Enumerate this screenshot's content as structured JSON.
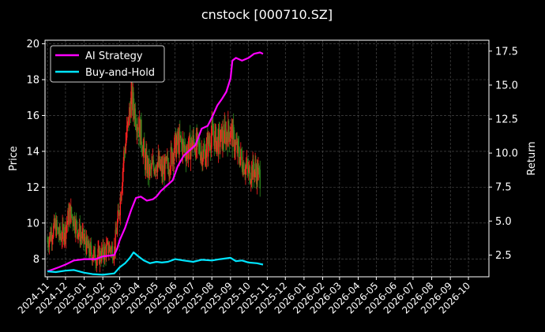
{
  "chart_data": {
    "type": "line",
    "title": "cnstock [000710.SZ]",
    "ylabel_left": "Price",
    "ylabel_right": "Return",
    "ylim_left": [
      7.0,
      20.2
    ],
    "ylim_right": [
      0.9,
      18.3
    ],
    "x_range": [
      "2024-10-28",
      "2026-11-04"
    ],
    "grid": true,
    "legend_position": "top-left",
    "x_tick_labels": [
      "2024-11",
      "2024-12",
      "2025-01",
      "2025-02",
      "2025-03",
      "2025-04",
      "2025-05",
      "2025-06",
      "2025-07",
      "2025-08",
      "2025-09",
      "2025-10",
      "2025-11",
      "2025-12",
      "2026-01",
      "2026-02",
      "2026-03",
      "2026-04",
      "2026-05",
      "2026-06",
      "2026-07",
      "2026-08",
      "2026-09",
      "2026-10"
    ],
    "y_left_ticks": [
      8,
      10,
      12,
      14,
      16,
      18,
      20
    ],
    "y_right_ticks": [
      "2.5",
      "5.0",
      "7.5",
      "10.0",
      "12.5",
      "15.0",
      "17.5"
    ],
    "price_candles": {
      "colors": {
        "up": "#ff2020",
        "down": "#2e8b1e"
      },
      "close_points": [
        [
          "2024-11-01",
          9.0
        ],
        [
          "2024-11-08",
          9.5
        ],
        [
          "2024-11-15",
          9.8
        ],
        [
          "2024-11-22",
          9.2
        ],
        [
          "2024-12-01",
          9.7
        ],
        [
          "2024-12-08",
          10.6
        ],
        [
          "2024-12-15",
          10.2
        ],
        [
          "2024-12-22",
          9.6
        ],
        [
          "2025-01-01",
          9.0
        ],
        [
          "2025-01-08",
          8.5
        ],
        [
          "2025-01-15",
          8.3
        ],
        [
          "2025-01-22",
          8.1
        ],
        [
          "2025-02-01",
          8.3
        ],
        [
          "2025-02-10",
          8.6
        ],
        [
          "2025-02-20",
          8.5
        ],
        [
          "2025-03-01",
          11.0
        ],
        [
          "2025-03-08",
          13.8
        ],
        [
          "2025-03-15",
          15.5
        ],
        [
          "2025-03-20",
          17.0
        ],
        [
          "2025-03-28",
          16.0
        ],
        [
          "2025-04-05",
          15.0
        ],
        [
          "2025-04-12",
          13.5
        ],
        [
          "2025-04-20",
          12.8
        ],
        [
          "2025-05-01",
          13.5
        ],
        [
          "2025-05-10",
          12.8
        ],
        [
          "2025-05-20",
          13.2
        ],
        [
          "2025-06-01",
          14.3
        ],
        [
          "2025-06-10",
          14.5
        ],
        [
          "2025-06-20",
          14.0
        ],
        [
          "2025-07-01",
          14.5
        ],
        [
          "2025-07-10",
          14.2
        ],
        [
          "2025-07-20",
          13.8
        ],
        [
          "2025-08-01",
          15.0
        ],
        [
          "2025-08-10",
          14.5
        ],
        [
          "2025-08-20",
          14.8
        ],
        [
          "2025-09-01",
          15.2
        ],
        [
          "2025-09-10",
          14.2
        ],
        [
          "2025-09-20",
          13.5
        ],
        [
          "2025-10-01",
          12.8
        ],
        [
          "2025-10-10",
          13.0
        ],
        [
          "2025-10-20",
          12.6
        ]
      ]
    },
    "series": [
      {
        "name": "AI Strategy",
        "color": "#ff00ff",
        "axis": "right",
        "points": [
          [
            "2024-11-01",
            1.3
          ],
          [
            "2024-11-20",
            1.6
          ],
          [
            "2024-12-01",
            1.8
          ],
          [
            "2024-12-15",
            2.1
          ],
          [
            "2025-01-01",
            2.2
          ],
          [
            "2025-01-20",
            2.2
          ],
          [
            "2025-02-01",
            2.4
          ],
          [
            "2025-02-20",
            2.5
          ],
          [
            "2025-02-25",
            3.0
          ],
          [
            "2025-03-01",
            3.6
          ],
          [
            "2025-03-10",
            4.5
          ],
          [
            "2025-03-20",
            5.8
          ],
          [
            "2025-03-28",
            6.7
          ],
          [
            "2025-04-05",
            6.8
          ],
          [
            "2025-04-15",
            6.5
          ],
          [
            "2025-04-25",
            6.6
          ],
          [
            "2025-05-01",
            6.8
          ],
          [
            "2025-05-08",
            7.2
          ],
          [
            "2025-05-18",
            7.6
          ],
          [
            "2025-05-28",
            8.0
          ],
          [
            "2025-06-05",
            9.0
          ],
          [
            "2025-06-15",
            9.8
          ],
          [
            "2025-06-25",
            10.2
          ],
          [
            "2025-07-05",
            10.6
          ],
          [
            "2025-07-15",
            11.8
          ],
          [
            "2025-07-25",
            12.0
          ],
          [
            "2025-08-01",
            12.6
          ],
          [
            "2025-08-10",
            13.5
          ],
          [
            "2025-08-18",
            14.0
          ],
          [
            "2025-08-25",
            14.5
          ],
          [
            "2025-09-01",
            15.5
          ],
          [
            "2025-09-04",
            16.8
          ],
          [
            "2025-09-10",
            17.0
          ],
          [
            "2025-09-20",
            16.8
          ],
          [
            "2025-10-01",
            17.0
          ],
          [
            "2025-10-10",
            17.3
          ],
          [
            "2025-10-20",
            17.4
          ],
          [
            "2025-10-25",
            17.3
          ]
        ]
      },
      {
        "name": "Buy-and-Hold",
        "color": "#00e5ff",
        "axis": "right",
        "points": [
          [
            "2024-11-01",
            1.3
          ],
          [
            "2024-11-15",
            1.25
          ],
          [
            "2024-12-01",
            1.35
          ],
          [
            "2024-12-15",
            1.4
          ],
          [
            "2025-01-01",
            1.2
          ],
          [
            "2025-01-15",
            1.1
          ],
          [
            "2025-02-01",
            1.05
          ],
          [
            "2025-02-20",
            1.15
          ],
          [
            "2025-03-01",
            1.6
          ],
          [
            "2025-03-10",
            1.9
          ],
          [
            "2025-03-18",
            2.3
          ],
          [
            "2025-03-24",
            2.7
          ],
          [
            "2025-04-01",
            2.4
          ],
          [
            "2025-04-10",
            2.1
          ],
          [
            "2025-04-20",
            1.9
          ],
          [
            "2025-05-01",
            2.0
          ],
          [
            "2025-05-10",
            1.95
          ],
          [
            "2025-05-20",
            2.0
          ],
          [
            "2025-06-01",
            2.2
          ],
          [
            "2025-06-15",
            2.1
          ],
          [
            "2025-07-01",
            2.0
          ],
          [
            "2025-07-15",
            2.15
          ],
          [
            "2025-08-01",
            2.1
          ],
          [
            "2025-08-15",
            2.2
          ],
          [
            "2025-09-01",
            2.3
          ],
          [
            "2025-09-10",
            2.05
          ],
          [
            "2025-09-20",
            2.1
          ],
          [
            "2025-10-01",
            1.95
          ],
          [
            "2025-10-15",
            1.9
          ],
          [
            "2025-10-25",
            1.8
          ]
        ]
      }
    ]
  }
}
